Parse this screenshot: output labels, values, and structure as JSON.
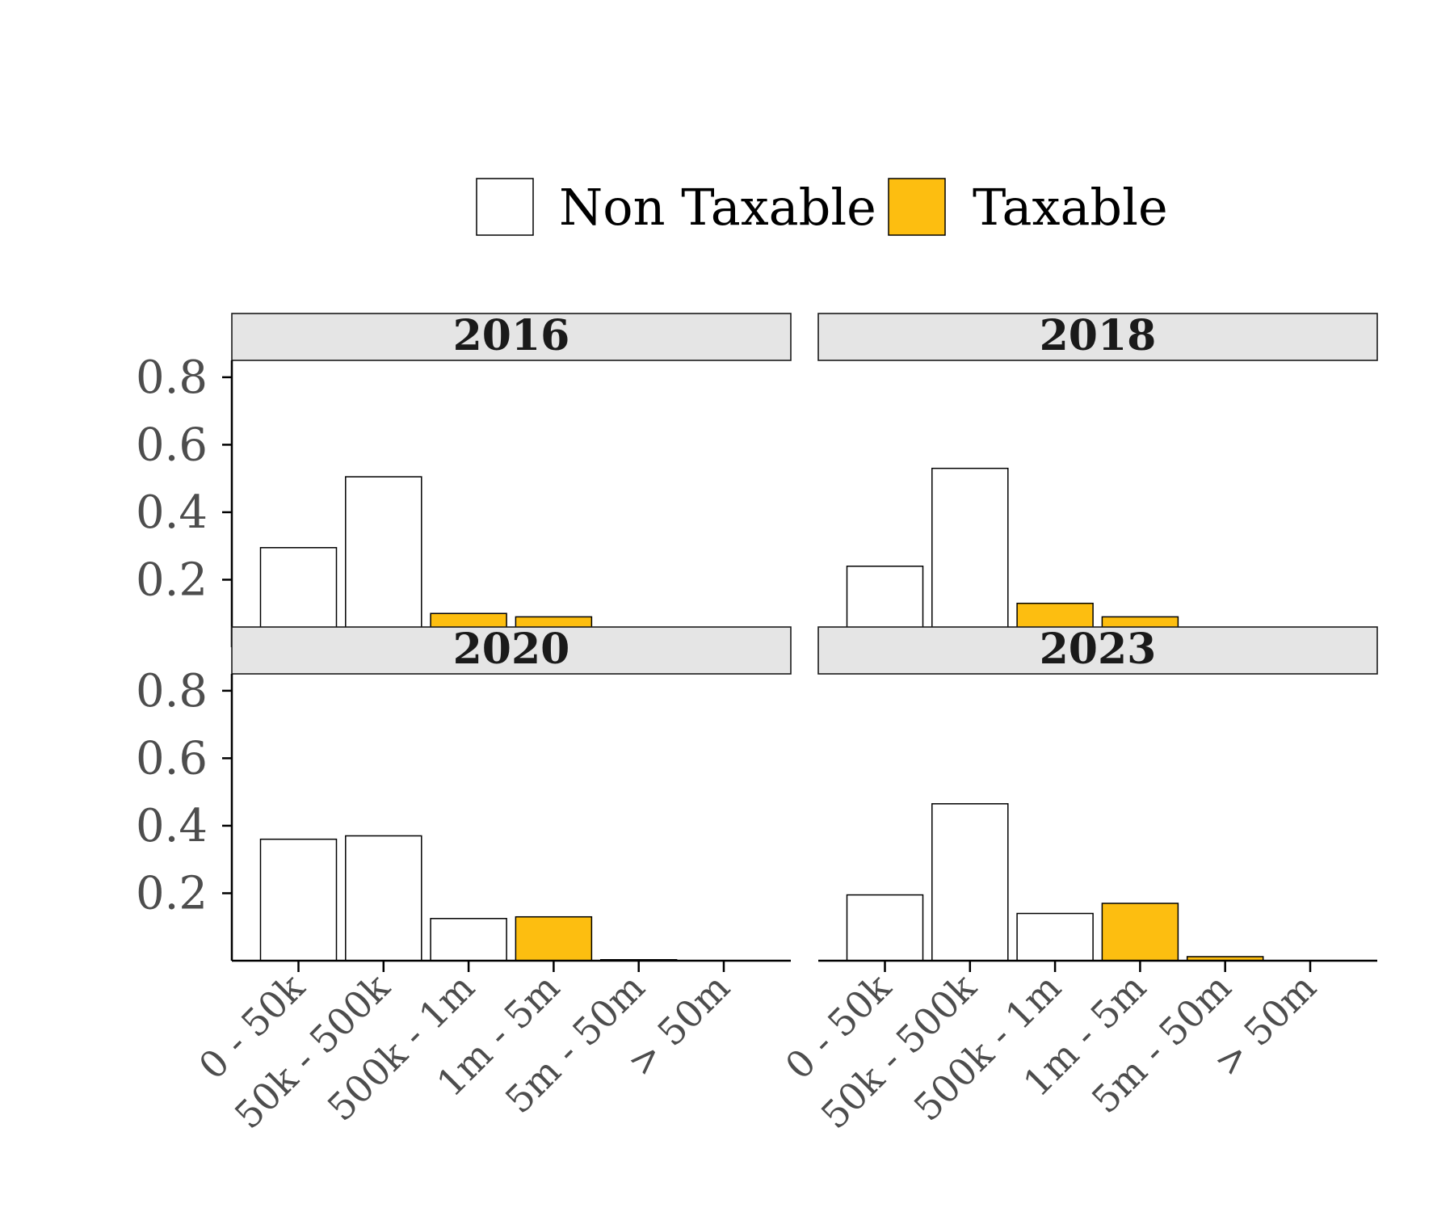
{
  "chart_data": {
    "type": "bar",
    "categories": [
      "0 - 50k",
      "50k - 500k",
      "500k - 1m",
      "1m - 5m",
      "5m - 50m",
      "> 50m"
    ],
    "ylim": [
      0,
      0.85
    ],
    "yticks": [
      0.2,
      0.4,
      0.6,
      0.8
    ],
    "ytick_labels": [
      "0.2",
      "0.4",
      "0.6",
      "0.8"
    ],
    "grid": false,
    "legend_position": "top",
    "legend": [
      {
        "key": "non_taxable",
        "label": "Non Taxable",
        "color": "#ffffff"
      },
      {
        "key": "taxable",
        "label": "Taxable",
        "color": "#FDBE10"
      }
    ],
    "panels": [
      {
        "title": "2016",
        "values": [
          0.295,
          0.505,
          0.1,
          0.09,
          0.002,
          0.0
        ],
        "status": [
          "non_taxable",
          "non_taxable",
          "taxable",
          "taxable",
          "non_taxable",
          "non_taxable"
        ]
      },
      {
        "title": "2018",
        "values": [
          0.24,
          0.53,
          0.13,
          0.09,
          0.002,
          0.0
        ],
        "status": [
          "non_taxable",
          "non_taxable",
          "taxable",
          "taxable",
          "non_taxable",
          "non_taxable"
        ]
      },
      {
        "title": "2020",
        "values": [
          0.36,
          0.37,
          0.125,
          0.13,
          0.003,
          0.0
        ],
        "status": [
          "non_taxable",
          "non_taxable",
          "non_taxable",
          "taxable",
          "non_taxable",
          "non_taxable"
        ]
      },
      {
        "title": "2023",
        "values": [
          0.195,
          0.465,
          0.14,
          0.17,
          0.012,
          0.0
        ],
        "status": [
          "non_taxable",
          "non_taxable",
          "non_taxable",
          "taxable",
          "taxable",
          "non_taxable"
        ]
      }
    ]
  }
}
